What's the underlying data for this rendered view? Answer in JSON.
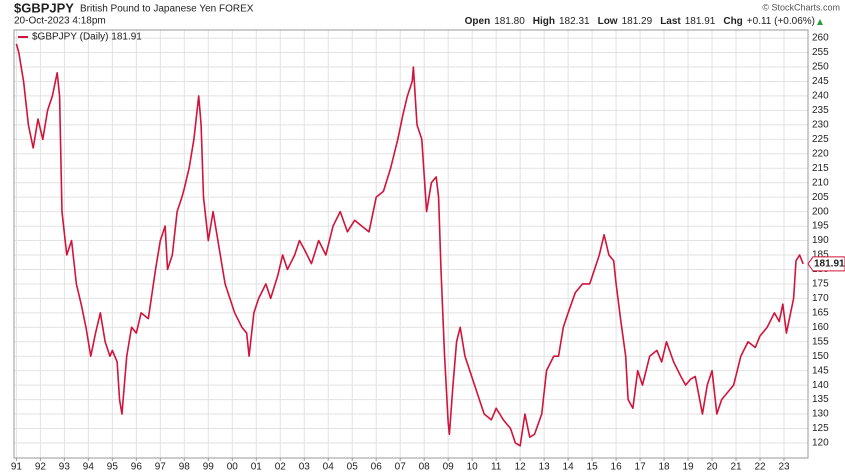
{
  "chart_data": {
    "type": "line",
    "title": "$GBPJPY",
    "subtitle": "British Pound to Japanese Yen FOREX",
    "date": "20-Oct-2023 4:18pm",
    "credit": "© StockCharts.com",
    "quote": [
      {
        "label": "Open",
        "text": "181.80"
      },
      {
        "label": "High",
        "text": "182.31"
      },
      {
        "label": "Low",
        "text": "181.29"
      },
      {
        "label": "Last",
        "text": "181.91"
      },
      {
        "label": "Chg",
        "text": "+0.11 (+0.06%)"
      }
    ],
    "grid": true,
    "legend": "top-left",
    "xlim": [
      1990.9,
      2024.0
    ],
    "ylim": [
      114.8,
      262.8
    ],
    "yticks": [
      120,
      125,
      130,
      135,
      140,
      145,
      150,
      155,
      160,
      165,
      170,
      175,
      180,
      185,
      190,
      195,
      200,
      205,
      210,
      215,
      220,
      225,
      230,
      235,
      240,
      245,
      250,
      255,
      260
    ],
    "xticks": [
      {
        "value": 1991,
        "label": "91"
      },
      {
        "value": 1992,
        "label": "92"
      },
      {
        "value": 1993,
        "label": "93"
      },
      {
        "value": 1994,
        "label": "94"
      },
      {
        "value": 1995,
        "label": "95"
      },
      {
        "value": 1996,
        "label": "96"
      },
      {
        "value": 1997,
        "label": "97"
      },
      {
        "value": 1998,
        "label": "98"
      },
      {
        "value": 1999,
        "label": "99"
      },
      {
        "value": 2000,
        "label": "00"
      },
      {
        "value": 2001,
        "label": "01"
      },
      {
        "value": 2002,
        "label": "02"
      },
      {
        "value": 2003,
        "label": "03"
      },
      {
        "value": 2004,
        "label": "04"
      },
      {
        "value": 2005,
        "label": "05"
      },
      {
        "value": 2006,
        "label": "06"
      },
      {
        "value": 2007,
        "label": "07"
      },
      {
        "value": 2008,
        "label": "08"
      },
      {
        "value": 2009,
        "label": "09"
      },
      {
        "value": 2010,
        "label": "10"
      },
      {
        "value": 2011,
        "label": "11"
      },
      {
        "value": 2012,
        "label": "12"
      },
      {
        "value": 2013,
        "label": "13"
      },
      {
        "value": 2014,
        "label": "14"
      },
      {
        "value": 2015,
        "label": "15"
      },
      {
        "value": 2016,
        "label": "16"
      },
      {
        "value": 2017,
        "label": "17"
      },
      {
        "value": 2018,
        "label": "18"
      },
      {
        "value": 2019,
        "label": "19"
      },
      {
        "value": 2020,
        "label": "20"
      },
      {
        "value": 2021,
        "label": "21"
      },
      {
        "value": 2022,
        "label": "22"
      },
      {
        "value": 2023,
        "label": "23"
      }
    ],
    "x": [
      1991.0,
      1991.1,
      1991.3,
      1991.5,
      1991.7,
      1991.9,
      1992.1,
      1992.3,
      1992.5,
      1992.7,
      1992.8,
      1992.9,
      1993.1,
      1993.3,
      1993.5,
      1993.7,
      1993.9,
      1994.1,
      1994.3,
      1994.5,
      1994.7,
      1994.9,
      1995.0,
      1995.2,
      1995.3,
      1995.4,
      1995.6,
      1995.8,
      1996.0,
      1996.2,
      1996.5,
      1996.8,
      1997.0,
      1997.2,
      1997.3,
      1997.5,
      1997.7,
      1997.9,
      1998.0,
      1998.2,
      1998.4,
      1998.6,
      1998.7,
      1998.8,
      1999.0,
      1999.2,
      1999.5,
      1999.7,
      1999.9,
      2000.1,
      2000.4,
      2000.6,
      2000.7,
      2000.9,
      2001.1,
      2001.4,
      2001.6,
      2001.9,
      2002.1,
      2002.3,
      2002.6,
      2002.8,
      2003.0,
      2003.3,
      2003.6,
      2003.9,
      2004.2,
      2004.5,
      2004.8,
      2005.1,
      2005.4,
      2005.7,
      2006.0,
      2006.3,
      2006.6,
      2006.9,
      2007.1,
      2007.3,
      2007.5,
      2007.55,
      2007.7,
      2007.9,
      2008.1,
      2008.3,
      2008.5,
      2008.6,
      2008.7,
      2008.85,
      2009.0,
      2009.05,
      2009.2,
      2009.35,
      2009.5,
      2009.7,
      2009.9,
      2010.1,
      2010.3,
      2010.5,
      2010.8,
      2011.0,
      2011.3,
      2011.6,
      2011.8,
      2012.0,
      2012.2,
      2012.4,
      2012.6,
      2012.9,
      2013.1,
      2013.4,
      2013.6,
      2013.8,
      2014.0,
      2014.3,
      2014.6,
      2014.9,
      2015.1,
      2015.3,
      2015.5,
      2015.7,
      2015.9,
      2016.0,
      2016.2,
      2016.4,
      2016.5,
      2016.7,
      2016.9,
      2017.1,
      2017.4,
      2017.7,
      2017.9,
      2018.1,
      2018.4,
      2018.7,
      2018.9,
      2019.1,
      2019.3,
      2019.6,
      2019.8,
      2020.0,
      2020.2,
      2020.4,
      2020.7,
      2020.9,
      2021.2,
      2021.5,
      2021.8,
      2022.0,
      2022.3,
      2022.6,
      2022.8,
      2022.95,
      2023.1,
      2023.4,
      2023.5,
      2023.65,
      2023.8
    ],
    "series": [
      {
        "name": "$GBPJPY (Daily) 181.91",
        "color": "#d2143a",
        "values": [
          258,
          255,
          245,
          230,
          222,
          232,
          225,
          235,
          240,
          248,
          240,
          200,
          185,
          190,
          175,
          168,
          160,
          150,
          158,
          165,
          155,
          150,
          152,
          148,
          135,
          130,
          150,
          160,
          158,
          165,
          163,
          180,
          190,
          195,
          180,
          185,
          200,
          205,
          208,
          215,
          225,
          240,
          230,
          205,
          190,
          200,
          185,
          175,
          170,
          165,
          160,
          158,
          150,
          165,
          170,
          175,
          170,
          178,
          185,
          180,
          185,
          190,
          187,
          182,
          190,
          185,
          195,
          200,
          193,
          197,
          195,
          193,
          205,
          207,
          215,
          225,
          233,
          240,
          245,
          250,
          230,
          225,
          200,
          210,
          212,
          205,
          180,
          150,
          127,
          123,
          140,
          155,
          160,
          150,
          145,
          140,
          135,
          130,
          128,
          132,
          128,
          125,
          120,
          119,
          130,
          122,
          123,
          130,
          145,
          150,
          150,
          160,
          165,
          172,
          175,
          175,
          180,
          185,
          192,
          185,
          183,
          175,
          162,
          150,
          135,
          132,
          145,
          140,
          150,
          152,
          148,
          155,
          148,
          143,
          140,
          142,
          143,
          130,
          140,
          145,
          130,
          135,
          138,
          140,
          150,
          155,
          153,
          157,
          160,
          165,
          162,
          168,
          158,
          170,
          183,
          185,
          181.91
        ]
      }
    ]
  }
}
